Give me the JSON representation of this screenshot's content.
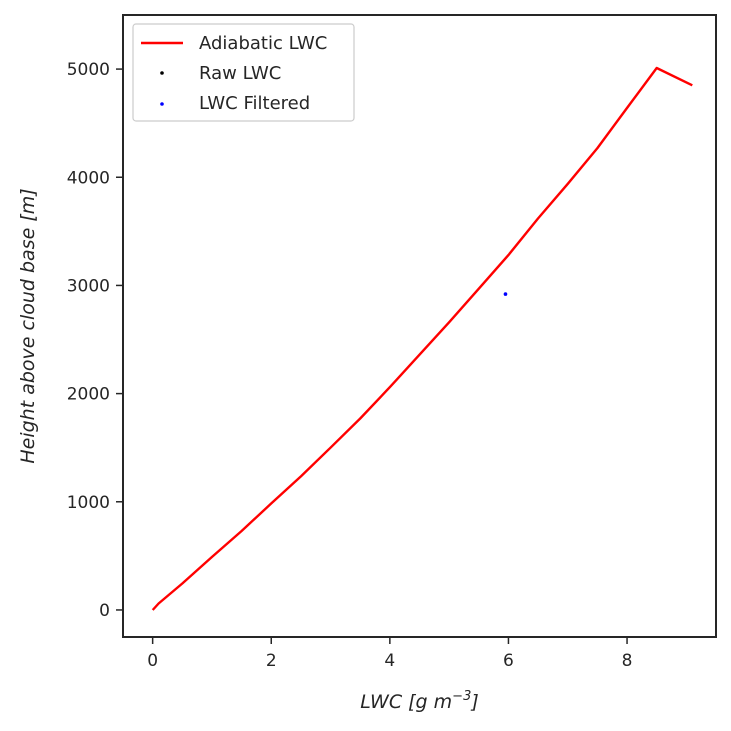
{
  "chart_data": {
    "type": "line",
    "title": "",
    "xlabel": "LWC [g m",
    "xlabel_sup": "−3",
    "xlabel_end": "]",
    "ylabel": "Height above cloud base [m]",
    "xlim": [
      -0.5,
      9.5
    ],
    "ylim": [
      -250,
      5500
    ],
    "x_ticks": [
      0,
      2,
      4,
      6,
      8
    ],
    "x_tick_labels": [
      "0",
      "2",
      "4",
      "6",
      "8"
    ],
    "y_ticks": [
      0,
      1000,
      2000,
      3000,
      4000,
      5000
    ],
    "y_tick_labels": [
      "0",
      "1000",
      "2000",
      "3000",
      "4000",
      "5000"
    ],
    "grid": false,
    "legend_position": "top-left",
    "series": [
      {
        "name": "Adiabatic LWC",
        "kind": "line",
        "color": "#ff0000",
        "x": [
          0.0,
          0.1,
          0.5,
          1.0,
          1.5,
          2.0,
          2.5,
          3.0,
          3.5,
          4.0,
          4.5,
          5.0,
          5.5,
          6.0,
          6.5,
          7.0,
          7.5,
          8.0,
          8.5,
          9.1
        ],
        "y": [
          0,
          60,
          245,
          490,
          730,
          985,
          1235,
          1500,
          1770,
          2060,
          2360,
          2660,
          2970,
          3280,
          3620,
          3940,
          4270,
          4640,
          5010,
          4850
        ]
      },
      {
        "name": "Raw LWC",
        "kind": "scatter",
        "color": "#000000",
        "x": [],
        "y": []
      },
      {
        "name": "LWC Filtered",
        "kind": "scatter",
        "color": "#0000ff",
        "x": [
          5.95
        ],
        "y": [
          2920
        ]
      }
    ]
  }
}
